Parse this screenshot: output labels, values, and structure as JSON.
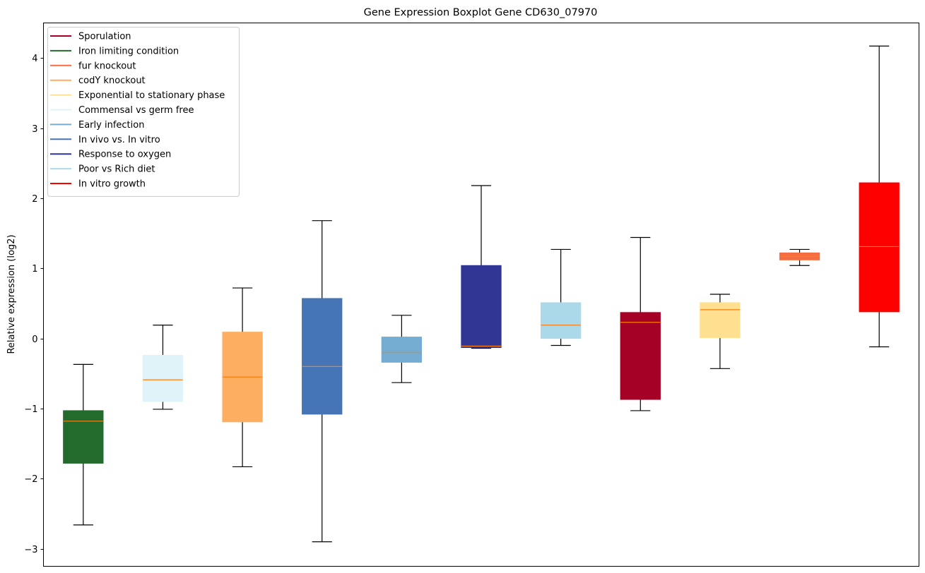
{
  "chart_data": {
    "type": "boxplot",
    "title": "Gene Expression Boxplot Gene CD630_07970",
    "xlabel": "",
    "ylabel": "Relative expression (log2)",
    "ylim": [
      -3.25,
      4.5
    ],
    "yticks": [
      -3,
      -2,
      -1,
      0,
      1,
      2,
      3,
      4
    ],
    "ytick_labels": [
      "−3",
      "−2",
      "−1",
      "0",
      "1",
      "2",
      "3",
      "4"
    ],
    "grid": false,
    "legend_position": "top-left",
    "legend": [
      {
        "label": "Sporulation",
        "color": "#a50026"
      },
      {
        "label": "Iron limiting condition",
        "color": "#236b2c"
      },
      {
        "label": "fur knockout",
        "color": "#f46d43"
      },
      {
        "label": "codY knockout",
        "color": "#fdae61"
      },
      {
        "label": "Exponential to stationary phase",
        "color": "#fee090"
      },
      {
        "label": "Commensal vs germ free",
        "color": "#e0f3f8"
      },
      {
        "label": "Early infection",
        "color": "#74add1"
      },
      {
        "label": "In vivo vs. In vitro",
        "color": "#4575b4"
      },
      {
        "label": "Response to oxygen",
        "color": "#313695"
      },
      {
        "label": "Poor vs Rich diet",
        "color": "#abd9e9"
      },
      {
        "label": "In vitro growth",
        "color": "#ff0000"
      }
    ],
    "median_color": "#ff7f0e",
    "series": [
      {
        "name": "Iron limiting condition",
        "color": "#236b2c",
        "whisker_low": -2.66,
        "q1": -1.78,
        "median": -1.18,
        "q3": -1.03,
        "whisker_high": -0.37
      },
      {
        "name": "Commensal vs germ free",
        "color": "#e0f3f8",
        "whisker_low": -1.01,
        "q1": -0.9,
        "median": -0.59,
        "q3": -0.24,
        "whisker_high": 0.19
      },
      {
        "name": "codY knockout",
        "color": "#fdae61",
        "whisker_low": -1.83,
        "q1": -1.19,
        "median": -0.55,
        "q3": 0.09,
        "whisker_high": 0.72
      },
      {
        "name": "In vivo vs. In vitro",
        "color": "#4575b4",
        "whisker_low": -2.9,
        "q1": -1.08,
        "median": -0.4,
        "q3": 0.57,
        "whisker_high": 1.68
      },
      {
        "name": "Early infection",
        "color": "#74add1",
        "whisker_low": -0.63,
        "q1": -0.34,
        "median": -0.2,
        "q3": 0.02,
        "whisker_high": 0.33
      },
      {
        "name": "Response to oxygen",
        "color": "#313695",
        "whisker_low": -0.14,
        "q1": -0.13,
        "median": -0.11,
        "q3": 1.04,
        "whisker_high": 2.18
      },
      {
        "name": "Poor vs Rich diet",
        "color": "#abd9e9",
        "whisker_low": -0.1,
        "q1": 0.0,
        "median": 0.19,
        "q3": 0.51,
        "whisker_high": 1.27
      },
      {
        "name": "Sporulation",
        "color": "#a50026",
        "whisker_low": -1.03,
        "q1": -0.87,
        "median": 0.23,
        "q3": 0.37,
        "whisker_high": 1.44
      },
      {
        "name": "Exponential to stationary phase",
        "color": "#fee090",
        "whisker_low": -0.43,
        "q1": 0.01,
        "median": 0.41,
        "q3": 0.51,
        "whisker_high": 0.63
      },
      {
        "name": "fur knockout",
        "color": "#f46d43",
        "whisker_low": 1.04,
        "q1": 1.12,
        "median": 1.17,
        "q3": 1.22,
        "whisker_high": 1.27
      },
      {
        "name": "In vitro growth",
        "color": "#ff0000",
        "whisker_low": -0.12,
        "q1": 0.38,
        "median": 1.31,
        "q3": 2.22,
        "whisker_high": 4.17
      }
    ]
  }
}
